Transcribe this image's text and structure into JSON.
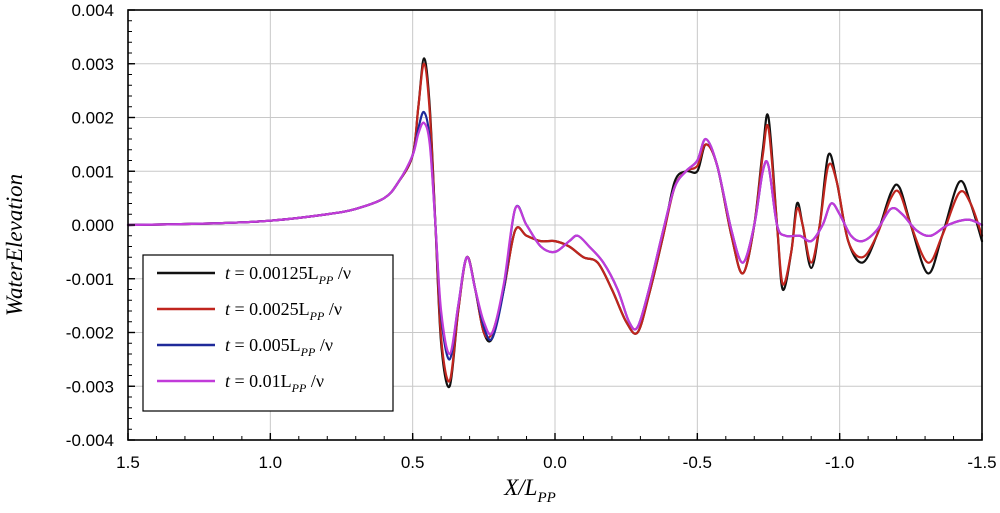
{
  "chart_data": {
    "type": "line",
    "title": "",
    "xlabel": "X/L",
    "xlabel_sub": "PP",
    "ylabel": "WaterElevation",
    "xlim": [
      1.5,
      -1.5
    ],
    "ylim": [
      -0.004,
      0.004
    ],
    "x_ticks": [
      1.5,
      1.0,
      0.5,
      0.0,
      -0.5,
      -1.0,
      -1.5
    ],
    "x_tick_labels": [
      "1.5",
      "1.0",
      "0.5",
      "0.0",
      "-0.5",
      "-1.0",
      "-1.5"
    ],
    "y_ticks": [
      0.004,
      0.003,
      0.002,
      0.001,
      0.0,
      -0.001,
      -0.002,
      -0.003,
      -0.004
    ],
    "y_tick_labels": [
      "0.004",
      "0.003",
      "0.002",
      "0.001",
      "0.000",
      "-0.001",
      "-0.002",
      "-0.003",
      "-0.004"
    ],
    "grid": true,
    "legend_position": "lower-left",
    "series": [
      {
        "name": "t = 0.00125L_PP /ν",
        "legend": {
          "pre": "t",
          "mid": " = 0.00125L",
          "sub": "PP",
          "post": " /ν"
        },
        "color": "#111111",
        "points": [
          [
            1.5,
            0.0
          ],
          [
            1.2,
            3e-05
          ],
          [
            1.0,
            8e-05
          ],
          [
            0.8,
            0.0002
          ],
          [
            0.7,
            0.0003
          ],
          [
            0.6,
            0.0005
          ],
          [
            0.55,
            0.0008
          ],
          [
            0.5,
            0.0013
          ],
          [
            0.48,
            0.0022
          ],
          [
            0.46,
            0.0031
          ],
          [
            0.44,
            0.0022
          ],
          [
            0.42,
            0.0
          ],
          [
            0.4,
            -0.0022
          ],
          [
            0.37,
            -0.003
          ],
          [
            0.34,
            -0.0016
          ],
          [
            0.31,
            -0.0006
          ],
          [
            0.28,
            -0.0012
          ],
          [
            0.25,
            -0.002
          ],
          [
            0.22,
            -0.0021
          ],
          [
            0.18,
            -0.0012
          ],
          [
            0.14,
            -0.0001
          ],
          [
            0.1,
            -0.0002
          ],
          [
            0.05,
            -0.0003
          ],
          [
            0.0,
            -0.0003
          ],
          [
            -0.05,
            -0.0004
          ],
          [
            -0.1,
            -0.0006
          ],
          [
            -0.15,
            -0.0007
          ],
          [
            -0.2,
            -0.0012
          ],
          [
            -0.25,
            -0.0018
          ],
          [
            -0.29,
            -0.002
          ],
          [
            -0.33,
            -0.0013
          ],
          [
            -0.38,
            -0.0002
          ],
          [
            -0.42,
            0.0008
          ],
          [
            -0.46,
            0.001
          ],
          [
            -0.5,
            0.001
          ],
          [
            -0.53,
            0.0015
          ],
          [
            -0.57,
            0.0011
          ],
          [
            -0.62,
            -0.0002
          ],
          [
            -0.66,
            -0.0009
          ],
          [
            -0.7,
            0.0
          ],
          [
            -0.73,
            0.0014
          ],
          [
            -0.75,
            0.002
          ],
          [
            -0.78,
            0.0
          ],
          [
            -0.8,
            -0.0012
          ],
          [
            -0.83,
            -0.0005
          ],
          [
            -0.85,
            0.0004
          ],
          [
            -0.87,
            0.0
          ],
          [
            -0.9,
            -0.0008
          ],
          [
            -0.93,
            0.0
          ],
          [
            -0.96,
            0.0013
          ],
          [
            -0.99,
            0.0008
          ],
          [
            -1.03,
            -0.0003
          ],
          [
            -1.08,
            -0.0007
          ],
          [
            -1.13,
            -0.0002
          ],
          [
            -1.18,
            0.0006
          ],
          [
            -1.21,
            0.0007
          ],
          [
            -1.25,
            0.0
          ],
          [
            -1.31,
            -0.0009
          ],
          [
            -1.36,
            -0.0002
          ],
          [
            -1.42,
            0.0008
          ],
          [
            -1.46,
            0.0004
          ],
          [
            -1.5,
            -0.0003
          ]
        ]
      },
      {
        "name": "t = 0.0025L_PP /ν",
        "legend": {
          "pre": "t",
          "mid": " = 0.0025L",
          "sub": "PP",
          "post": " /ν"
        },
        "color": "#c0251e",
        "points": [
          [
            1.5,
            0.0
          ],
          [
            1.2,
            3e-05
          ],
          [
            1.0,
            8e-05
          ],
          [
            0.8,
            0.0002
          ],
          [
            0.7,
            0.0003
          ],
          [
            0.6,
            0.0005
          ],
          [
            0.55,
            0.0008
          ],
          [
            0.5,
            0.0013
          ],
          [
            0.48,
            0.0022
          ],
          [
            0.46,
            0.003
          ],
          [
            0.44,
            0.0021
          ],
          [
            0.42,
            0.0
          ],
          [
            0.4,
            -0.0021
          ],
          [
            0.37,
            -0.0029
          ],
          [
            0.34,
            -0.0016
          ],
          [
            0.31,
            -0.0006
          ],
          [
            0.28,
            -0.0012
          ],
          [
            0.25,
            -0.002
          ],
          [
            0.22,
            -0.002
          ],
          [
            0.18,
            -0.0012
          ],
          [
            0.14,
            -0.0001
          ],
          [
            0.1,
            -0.0002
          ],
          [
            0.05,
            -0.0003
          ],
          [
            0.0,
            -0.0003
          ],
          [
            -0.05,
            -0.0004
          ],
          [
            -0.1,
            -0.0006
          ],
          [
            -0.15,
            -0.0007
          ],
          [
            -0.2,
            -0.0012
          ],
          [
            -0.25,
            -0.0018
          ],
          [
            -0.29,
            -0.002
          ],
          [
            -0.33,
            -0.0013
          ],
          [
            -0.38,
            -0.0002
          ],
          [
            -0.42,
            0.0007
          ],
          [
            -0.46,
            0.001
          ],
          [
            -0.5,
            0.0011
          ],
          [
            -0.53,
            0.0015
          ],
          [
            -0.57,
            0.0011
          ],
          [
            -0.62,
            -0.0002
          ],
          [
            -0.66,
            -0.0009
          ],
          [
            -0.7,
            0.0
          ],
          [
            -0.73,
            0.0013
          ],
          [
            -0.75,
            0.0018
          ],
          [
            -0.78,
            0.0
          ],
          [
            -0.8,
            -0.0011
          ],
          [
            -0.83,
            -0.0005
          ],
          [
            -0.85,
            0.0003
          ],
          [
            -0.87,
            0.0
          ],
          [
            -0.9,
            -0.0007
          ],
          [
            -0.93,
            0.0
          ],
          [
            -0.96,
            0.0011
          ],
          [
            -0.99,
            0.0008
          ],
          [
            -1.03,
            -0.0003
          ],
          [
            -1.08,
            -0.0006
          ],
          [
            -1.13,
            -0.0002
          ],
          [
            -1.18,
            0.0005
          ],
          [
            -1.21,
            0.0006
          ],
          [
            -1.25,
            0.0
          ],
          [
            -1.31,
            -0.0007
          ],
          [
            -1.36,
            -0.0002
          ],
          [
            -1.42,
            0.0006
          ],
          [
            -1.46,
            0.0004
          ],
          [
            -1.5,
            -0.0002
          ]
        ]
      },
      {
        "name": "t = 0.005L_PP /ν",
        "legend": {
          "pre": "t",
          "mid": " = 0.005L",
          "sub": "PP",
          "post": " /ν"
        },
        "color": "#1f2a9a",
        "points": [
          [
            1.5,
            0.0
          ],
          [
            1.2,
            3e-05
          ],
          [
            1.0,
            8e-05
          ],
          [
            0.8,
            0.0002
          ],
          [
            0.7,
            0.0003
          ],
          [
            0.6,
            0.0005
          ],
          [
            0.55,
            0.0008
          ],
          [
            0.5,
            0.0013
          ],
          [
            0.48,
            0.0018
          ],
          [
            0.46,
            0.0021
          ],
          [
            0.44,
            0.0016
          ],
          [
            0.42,
            0.0
          ],
          [
            0.4,
            -0.0017
          ],
          [
            0.37,
            -0.0025
          ],
          [
            0.34,
            -0.0015
          ],
          [
            0.31,
            -0.0006
          ],
          [
            0.28,
            -0.0012
          ],
          [
            0.25,
            -0.0019
          ],
          [
            0.22,
            -0.0021
          ],
          [
            0.18,
            -0.0012
          ],
          [
            0.14,
            0.0003
          ],
          [
            0.1,
            0.0
          ],
          [
            0.05,
            -0.0004
          ],
          [
            0.0,
            -0.0005
          ],
          [
            -0.05,
            -0.0003
          ],
          [
            -0.08,
            -0.0002
          ],
          [
            -0.12,
            -0.0004
          ],
          [
            -0.17,
            -0.0007
          ],
          [
            -0.22,
            -0.0012
          ],
          [
            -0.26,
            -0.0018
          ],
          [
            -0.29,
            -0.0019
          ],
          [
            -0.33,
            -0.0012
          ],
          [
            -0.38,
            -0.0001
          ],
          [
            -0.42,
            0.0007
          ],
          [
            -0.46,
            0.001
          ],
          [
            -0.5,
            0.0012
          ],
          [
            -0.53,
            0.0016
          ],
          [
            -0.57,
            0.0011
          ],
          [
            -0.62,
            -0.0001
          ],
          [
            -0.66,
            -0.0007
          ],
          [
            -0.7,
            0.0
          ],
          [
            -0.73,
            0.001
          ],
          [
            -0.75,
            0.0011
          ],
          [
            -0.78,
            0.0
          ],
          [
            -0.81,
            -0.0002
          ],
          [
            -0.86,
            -0.0002
          ],
          [
            -0.9,
            -0.0003
          ],
          [
            -0.94,
            0.0
          ],
          [
            -0.97,
            0.0004
          ],
          [
            -1.0,
            0.0002
          ],
          [
            -1.04,
            -0.0002
          ],
          [
            -1.08,
            -0.0003
          ],
          [
            -1.13,
            -0.0001
          ],
          [
            -1.18,
            0.0003
          ],
          [
            -1.22,
            0.0002
          ],
          [
            -1.27,
            -0.0001
          ],
          [
            -1.32,
            -0.0002
          ],
          [
            -1.38,
            0.0
          ],
          [
            -1.45,
            0.0001
          ],
          [
            -1.5,
            0.0
          ]
        ]
      },
      {
        "name": "t = 0.01L_PP /ν",
        "legend": {
          "pre": "t",
          "mid": " = 0.01L",
          "sub": "PP",
          "post": " /ν"
        },
        "color": "#c13bd9",
        "points": [
          [
            1.5,
            0.0
          ],
          [
            1.2,
            3e-05
          ],
          [
            1.0,
            8e-05
          ],
          [
            0.8,
            0.0002
          ],
          [
            0.7,
            0.0003
          ],
          [
            0.6,
            0.0005
          ],
          [
            0.55,
            0.0008
          ],
          [
            0.5,
            0.0013
          ],
          [
            0.48,
            0.0017
          ],
          [
            0.46,
            0.0019
          ],
          [
            0.44,
            0.0015
          ],
          [
            0.42,
            0.0
          ],
          [
            0.4,
            -0.0016
          ],
          [
            0.37,
            -0.0024
          ],
          [
            0.34,
            -0.0015
          ],
          [
            0.31,
            -0.0006
          ],
          [
            0.28,
            -0.0012
          ],
          [
            0.25,
            -0.0018
          ],
          [
            0.22,
            -0.002
          ],
          [
            0.18,
            -0.0011
          ],
          [
            0.14,
            0.0003
          ],
          [
            0.1,
            0.0
          ],
          [
            0.05,
            -0.0004
          ],
          [
            0.0,
            -0.0005
          ],
          [
            -0.05,
            -0.0003
          ],
          [
            -0.08,
            -0.0002
          ],
          [
            -0.12,
            -0.0004
          ],
          [
            -0.17,
            -0.0007
          ],
          [
            -0.22,
            -0.0012
          ],
          [
            -0.26,
            -0.0018
          ],
          [
            -0.29,
            -0.0019
          ],
          [
            -0.33,
            -0.0012
          ],
          [
            -0.38,
            -0.0001
          ],
          [
            -0.42,
            0.0007
          ],
          [
            -0.46,
            0.001
          ],
          [
            -0.5,
            0.0012
          ],
          [
            -0.53,
            0.0016
          ],
          [
            -0.57,
            0.0011
          ],
          [
            -0.62,
            -0.0001
          ],
          [
            -0.66,
            -0.0007
          ],
          [
            -0.7,
            0.0
          ],
          [
            -0.73,
            0.001
          ],
          [
            -0.75,
            0.0011
          ],
          [
            -0.78,
            0.0
          ],
          [
            -0.81,
            -0.0002
          ],
          [
            -0.86,
            -0.0002
          ],
          [
            -0.9,
            -0.0003
          ],
          [
            -0.94,
            0.0
          ],
          [
            -0.97,
            0.0004
          ],
          [
            -1.0,
            0.0002
          ],
          [
            -1.04,
            -0.0002
          ],
          [
            -1.08,
            -0.0003
          ],
          [
            -1.13,
            -0.0001
          ],
          [
            -1.18,
            0.0003
          ],
          [
            -1.22,
            0.0002
          ],
          [
            -1.27,
            -0.0001
          ],
          [
            -1.32,
            -0.0002
          ],
          [
            -1.38,
            0.0
          ],
          [
            -1.45,
            0.0001
          ],
          [
            -1.5,
            0.0
          ]
        ]
      }
    ]
  }
}
